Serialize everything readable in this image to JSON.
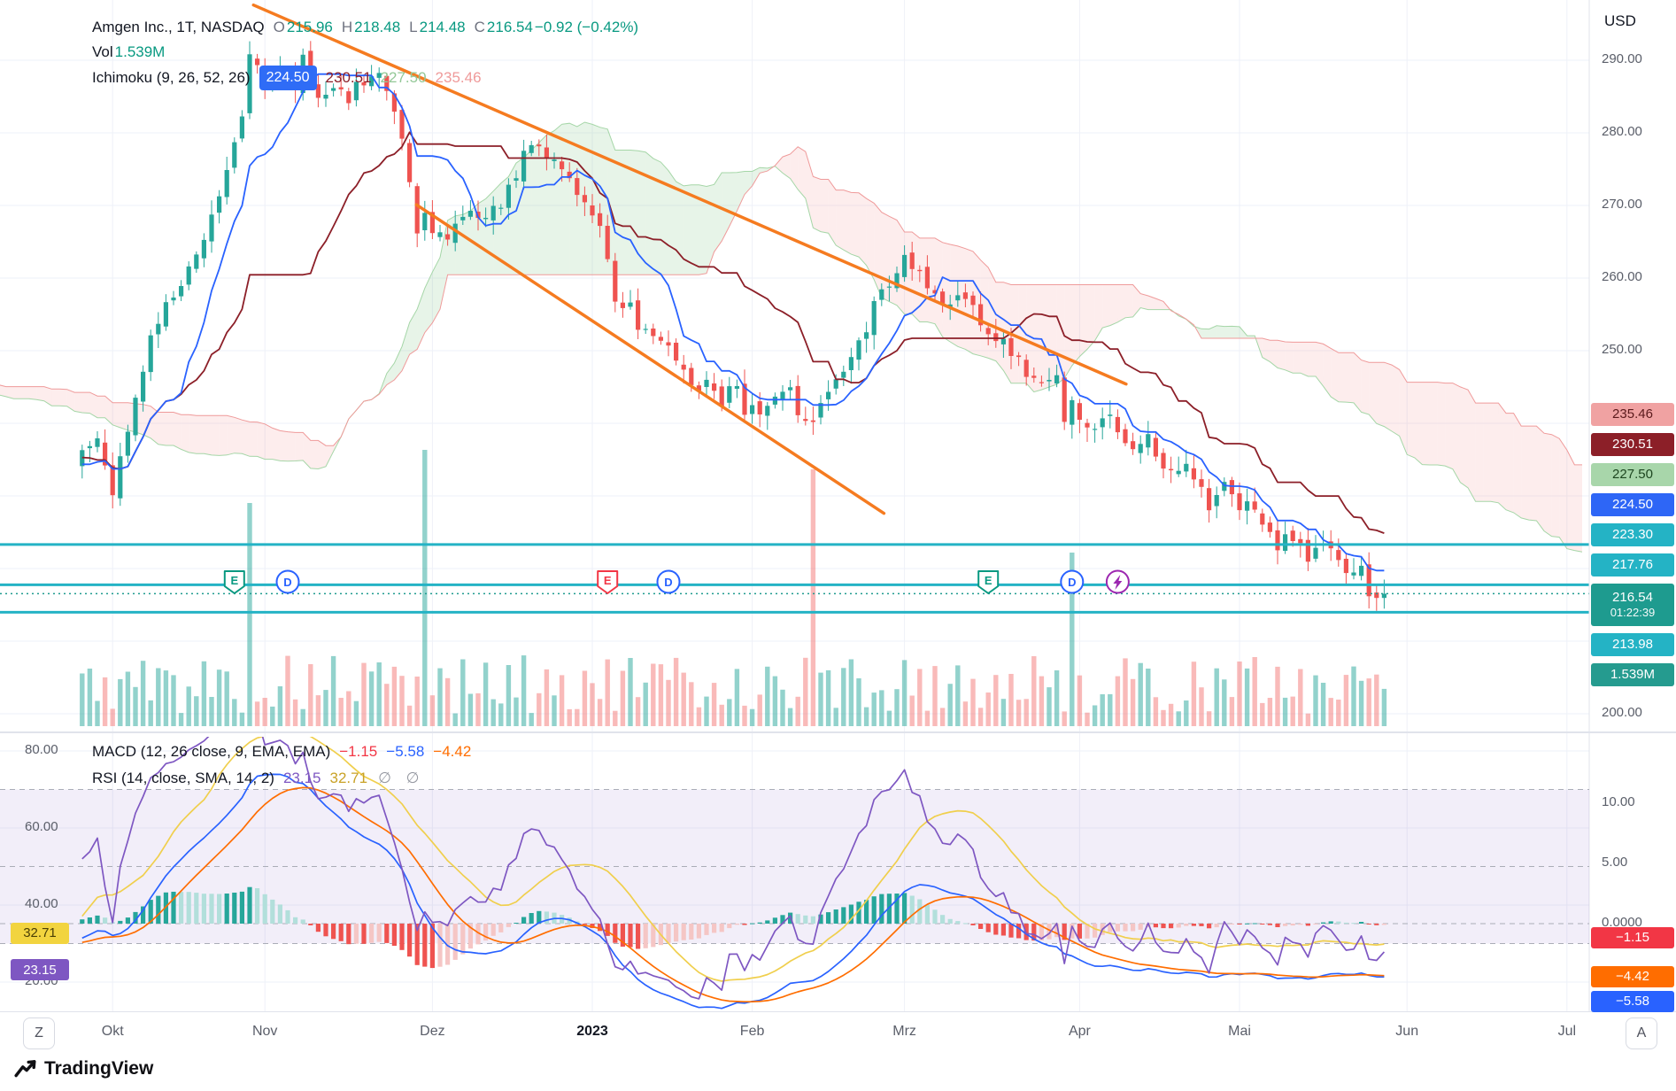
{
  "colors": {
    "up": "#26a69a",
    "down": "#ef5350",
    "grid": "#eef1f8",
    "tenkan": "#2962ff",
    "kijun": "#8c1f28",
    "leadA": "#a5d6a7",
    "leadB": "#ef9a9a",
    "cloud_green": "rgba(103,189,115,0.16)",
    "cloud_red": "rgba(239,131,131,0.15)",
    "level": "#24b3c5",
    "last_price": "#1e9b8f",
    "trendline": "#f57b20",
    "macd_line": "#2962ff",
    "signal_line": "#ff6d00",
    "rsi_line": "#7e57c2",
    "rsi_ma": "#f0cf4d",
    "hist_pos": "#26a69a",
    "hist_pos_light": "#b2dfdb",
    "hist_neg": "#ef5350",
    "hist_neg_light": "#f5c6c5",
    "band": "rgba(126,87,194,0.10)",
    "vol_up": "rgba(38,166,154,0.5)",
    "vol_down": "rgba(239,83,80,0.4)",
    "dashed": "#aaadb7"
  },
  "main_legend": {
    "symbol": "Amgen Inc., 1T, NASDAQ",
    "o_k": "O",
    "o_v": "215.96",
    "h_k": "H",
    "h_v": "218.48",
    "l_k": "L",
    "l_v": "214.48",
    "c_k": "C",
    "c_v": "216.54",
    "change": "−0.92 (−0.42%)",
    "vol_k": "Vol",
    "vol_v": "1.539M",
    "ichi_title": "Ichimoku (9, 26, 52, 26)",
    "ichi_conversion": "224.50",
    "ichi_base": "230.51",
    "ichi_lead1": "227.50",
    "ichi_lead2": "235.46"
  },
  "indicator_legend": {
    "macd_title": "MACD (12, 26 close, 9, EMA, EMA)",
    "macd_hist": "−1.15",
    "macd_macd": "−5.58",
    "macd_signal": "−4.42",
    "rsi_title": "RSI (14, close, SMA, 14, 2)",
    "rsi_value": "23.15",
    "rsi_ma": "32.71",
    "rsi_hidden": "∅ ∅"
  },
  "price_axis": {
    "currency": "USD",
    "ticks": [
      {
        "label": "290.00",
        "value": 290
      },
      {
        "label": "280.00",
        "value": 280
      },
      {
        "label": "270.00",
        "value": 270
      },
      {
        "label": "260.00",
        "value": 260
      },
      {
        "label": "250.00",
        "value": 250
      },
      {
        "label": "200.00",
        "value": 200
      }
    ],
    "labels": [
      {
        "text": "235.46",
        "bg": "#f0a2a2",
        "fg": "#5b1a1c"
      },
      {
        "text": "230.51",
        "bg": "#8c1f28",
        "fg": "#ffffff"
      },
      {
        "text": "227.50",
        "bg": "#a8d6aa",
        "fg": "#1d4620"
      },
      {
        "text": "224.50",
        "bg": "#2e66f6",
        "fg": "#ffffff"
      },
      {
        "text": "223.30",
        "bg": "#24b3c5",
        "fg": "#ffffff"
      },
      {
        "text": "217.76",
        "bg": "#24b3c5",
        "fg": "#ffffff"
      },
      {
        "text": "216.54",
        "sub": "01:22:39",
        "bg": "#1e9b8f",
        "fg": "#ffffff",
        "tall": true
      },
      {
        "text": "213.98",
        "bg": "#24b3c5",
        "fg": "#ffffff"
      },
      {
        "text": "1.539M",
        "bg": "#259b8f",
        "fg": "#ffffff"
      }
    ]
  },
  "indicator_axis": {
    "left_ticks": [
      {
        "label": "80.00",
        "value": 80
      },
      {
        "label": "60.00",
        "value": 60
      },
      {
        "label": "40.00",
        "value": 40
      },
      {
        "label": "20.00",
        "value": 20
      }
    ],
    "right_ticks": [
      {
        "label": "10.00",
        "value": 10
      },
      {
        "label": "5.00",
        "value": 5
      },
      {
        "label": "0.0000",
        "value": 0
      }
    ],
    "left_labels": [
      {
        "text": "32.71",
        "bg": "#f2d43f",
        "fg": "#4a3f06",
        "value": 32.71
      },
      {
        "text": "23.15",
        "bg": "#7e57c2",
        "fg": "#ffffff",
        "value": 23.15
      }
    ],
    "right_labels": [
      {
        "text": "−1.15",
        "bg": "#f23645",
        "fg": "#ffffff",
        "value": -1.15
      },
      {
        "text": "−4.42",
        "bg": "#ff6d00",
        "fg": "#ffffff",
        "value": -4.42
      },
      {
        "text": "−5.58",
        "bg": "#2962ff",
        "fg": "#ffffff",
        "value": -5.58
      }
    ]
  },
  "time_axis": {
    "labels": [
      {
        "text": "Okt",
        "day": 2
      },
      {
        "text": "Nov",
        "day": 22
      },
      {
        "text": "Dez",
        "day": 44
      },
      {
        "text": "2023",
        "day": 65,
        "bold": true
      },
      {
        "text": "Feb",
        "day": 86
      },
      {
        "text": "Mrz",
        "day": 106
      },
      {
        "text": "Apr",
        "day": 129
      },
      {
        "text": "Mai",
        "day": 150
      },
      {
        "text": "Jun",
        "day": 172
      },
      {
        "text": "Jul",
        "day": 193
      }
    ]
  },
  "buttons": {
    "left": "Z",
    "right": "A"
  },
  "logo": {
    "text": "TradingView"
  },
  "chart_data": [
    {
      "type": "candlestick",
      "title": "Amgen Inc., 1T, NASDAQ",
      "currency": "USD",
      "timeframe": "1T",
      "ylim": [
        200,
        292
      ],
      "price_ticks": [
        200,
        210,
        220,
        230,
        240,
        250,
        260,
        270,
        280,
        290
      ],
      "x_month_labels": [
        "Okt",
        "Nov",
        "Dez",
        "2023",
        "Feb",
        "Mrz",
        "Apr",
        "Mai",
        "Jun",
        "Jul"
      ],
      "last_bar": {
        "open": 215.96,
        "high": 218.48,
        "low": 214.48,
        "close": 216.54,
        "change": -0.92,
        "change_pct": -0.42,
        "volume_text": "1.539M"
      },
      "bars_total": 170,
      "noise_seed": 11,
      "volume_seed": 5,
      "noise_amplitude": 1.0,
      "prehistory_anchors": [
        [
          -60,
          249
        ],
        [
          -45,
          243
        ],
        [
          -30,
          240
        ],
        [
          -15,
          233
        ],
        [
          -8,
          236
        ],
        [
          -4,
          232
        ],
        [
          -1,
          237
        ]
      ],
      "close_anchors": [
        [
          0,
          238
        ],
        [
          2,
          231
        ],
        [
          5,
          243
        ],
        [
          7,
          252
        ],
        [
          10,
          258
        ],
        [
          13,
          263
        ],
        [
          15,
          269
        ],
        [
          17,
          274
        ],
        [
          19,
          282
        ],
        [
          20,
          291
        ],
        [
          22,
          286
        ],
        [
          24,
          289
        ],
        [
          26,
          287
        ],
        [
          27,
          290
        ],
        [
          29,
          285
        ],
        [
          31,
          287
        ],
        [
          33,
          284
        ],
        [
          34,
          287
        ],
        [
          37,
          288
        ],
        [
          38,
          285
        ],
        [
          40,
          279
        ],
        [
          41,
          273
        ],
        [
          42,
          266
        ],
        [
          43,
          269
        ],
        [
          44,
          267
        ],
        [
          46,
          265
        ],
        [
          48,
          268
        ],
        [
          49,
          270
        ],
        [
          51,
          268
        ],
        [
          53,
          270
        ],
        [
          55,
          274
        ],
        [
          56,
          277
        ],
        [
          58,
          279
        ],
        [
          59,
          277
        ],
        [
          61,
          275
        ],
        [
          63,
          272
        ],
        [
          64,
          270
        ],
        [
          66,
          268
        ],
        [
          68,
          257
        ],
        [
          70,
          256
        ],
        [
          71,
          252
        ],
        [
          73,
          253
        ],
        [
          75,
          250
        ],
        [
          77,
          247
        ],
        [
          78,
          245
        ],
        [
          80,
          246
        ],
        [
          82,
          243
        ],
        [
          84,
          246
        ],
        [
          85,
          242
        ],
        [
          87,
          241
        ],
        [
          89,
          243
        ],
        [
          91,
          244
        ],
        [
          92,
          242
        ],
        [
          94,
          240
        ],
        [
          95,
          243
        ],
        [
          97,
          246
        ],
        [
          99,
          250
        ],
        [
          101,
          253
        ],
        [
          102,
          257
        ],
        [
          104,
          259
        ],
        [
          106,
          263
        ],
        [
          108,
          260
        ],
        [
          110,
          258
        ],
        [
          112,
          256
        ],
        [
          113,
          258
        ],
        [
          115,
          256
        ],
        [
          117,
          253
        ],
        [
          119,
          251
        ],
        [
          120,
          250
        ],
        [
          122,
          247
        ],
        [
          124,
          245
        ],
        [
          126,
          246
        ],
        [
          127,
          241
        ],
        [
          128,
          244
        ],
        [
          129,
          240
        ],
        [
          131,
          240
        ],
        [
          133,
          242
        ],
        [
          134,
          238
        ],
        [
          136,
          236
        ],
        [
          138,
          238
        ],
        [
          139,
          235
        ],
        [
          141,
          233
        ],
        [
          143,
          235
        ],
        [
          145,
          231
        ],
        [
          146,
          229
        ],
        [
          148,
          231
        ],
        [
          150,
          228
        ],
        [
          152,
          229
        ],
        [
          153,
          226
        ],
        [
          155,
          223
        ],
        [
          157,
          224.5
        ],
        [
          159,
          221
        ],
        [
          160,
          222
        ],
        [
          162,
          223
        ],
        [
          164,
          219.5
        ],
        [
          166,
          221
        ],
        [
          167,
          217
        ],
        [
          169,
          216.54
        ]
      ],
      "ichimoku": {
        "params": [
          9,
          26,
          52,
          26
        ],
        "conversion": 224.5,
        "base": 230.51,
        "lead1": 227.5,
        "lead2": 235.46
      },
      "levels": [
        223.3,
        217.76,
        213.98
      ],
      "current_price": 216.54,
      "countdown": "01:22:39",
      "volume_spikes": [
        [
          20,
          252
        ],
        [
          43,
          312
        ],
        [
          94,
          290
        ],
        [
          128,
          196
        ]
      ],
      "trendlines": [
        {
          "from": [
            20.5,
            297.6
          ],
          "to": [
            135.1,
            245.4
          ]
        },
        {
          "from": [
            41.9,
            270.1
          ],
          "to": [
            103.3,
            227.6
          ]
        }
      ],
      "events": [
        {
          "day": 18,
          "label": "E",
          "shape": "shield",
          "color": "#089981"
        },
        {
          "day": 25,
          "label": "D",
          "shape": "circle",
          "color": "#2962ff"
        },
        {
          "day": 67,
          "label": "E",
          "shape": "shield",
          "color": "#f23645"
        },
        {
          "day": 75,
          "label": "D",
          "shape": "circle",
          "color": "#2962ff"
        },
        {
          "day": 117,
          "label": "E",
          "shape": "shield",
          "color": "#089981"
        },
        {
          "day": 128,
          "label": "D",
          "shape": "circle",
          "color": "#2962ff"
        },
        {
          "day": 134,
          "label": "flash",
          "shape": "flash",
          "color": "#9c27b0"
        }
      ]
    },
    {
      "type": "macd_rsi",
      "macd": {
        "title": "MACD (12, 26 close, 9, EMA, EMA)",
        "histogram": -1.15,
        "macd": -5.58,
        "signal": -4.42,
        "fast": 12,
        "slow": 26,
        "signal_len": 9
      },
      "rsi": {
        "title": "RSI (14, close, SMA, 14, 2)",
        "value": 23.15,
        "sma": 32.71,
        "length": 14,
        "bands": [
          70,
          30
        ],
        "middle": 50
      },
      "left_scale_ticks": [
        80,
        60,
        40,
        20
      ],
      "right_scale_ticks": [
        10,
        5,
        0
      ]
    }
  ]
}
